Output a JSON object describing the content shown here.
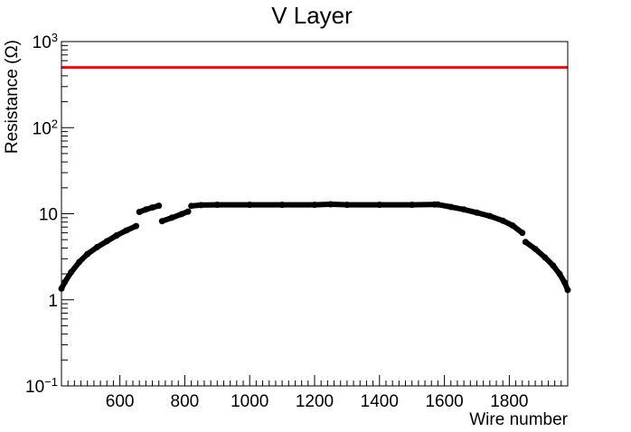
{
  "chart_data": {
    "type": "scatter",
    "title": "V Layer",
    "xlabel": "Wire number",
    "ylabel": "Resistance (Ω)",
    "xlim": [
      420,
      1980
    ],
    "ylim": [
      0.1,
      1000
    ],
    "yscale": "log",
    "grid": false,
    "x_ticks": [
      600,
      800,
      1000,
      1200,
      1400,
      1600,
      1800
    ],
    "y_ticks": [
      {
        "value": 0.1,
        "base": "10",
        "exp": "−1"
      },
      {
        "value": 1,
        "label": "1"
      },
      {
        "value": 10,
        "label": "10"
      },
      {
        "value": 100,
        "base": "10",
        "exp": "2"
      },
      {
        "value": 1000,
        "base": "10",
        "exp": "3"
      }
    ],
    "reference_line": {
      "y": 500,
      "color": "#ff0000"
    },
    "series": [
      {
        "color": "#000000",
        "segments": [
          {
            "x": [
              420,
              430,
              450,
              475,
              500,
              530,
              560,
              590,
              620,
              650
            ],
            "y": [
              1.35,
              1.6,
              2.1,
              2.75,
              3.4,
              4.1,
              4.8,
              5.6,
              6.4,
              7.2
            ]
          },
          {
            "x": [
              660,
              680,
              700,
              720
            ],
            "y": [
              10.5,
              11.2,
              11.8,
              12.4
            ]
          },
          {
            "x": [
              730,
              760,
              790,
              810
            ],
            "y": [
              8.2,
              9.0,
              9.9,
              10.6
            ]
          },
          {
            "x": [
              820,
              850,
              900,
              1000,
              1100,
              1200,
              1250,
              1300,
              1400,
              1500,
              1570
            ],
            "y": [
              12.3,
              12.6,
              12.7,
              12.7,
              12.7,
              12.7,
              12.9,
              12.7,
              12.7,
              12.7,
              12.8
            ]
          },
          {
            "x": [
              1580,
              1620,
              1660,
              1700,
              1740,
              1780,
              1810,
              1840
            ],
            "y": [
              12.8,
              12.0,
              11.2,
              10.3,
              9.4,
              8.3,
              7.3,
              6.0
            ]
          },
          {
            "x": [
              1850,
              1880,
              1910,
              1935,
              1955,
              1970,
              1980
            ],
            "y": [
              4.7,
              3.9,
              3.1,
              2.5,
              2.0,
              1.6,
              1.3
            ]
          }
        ]
      }
    ]
  }
}
